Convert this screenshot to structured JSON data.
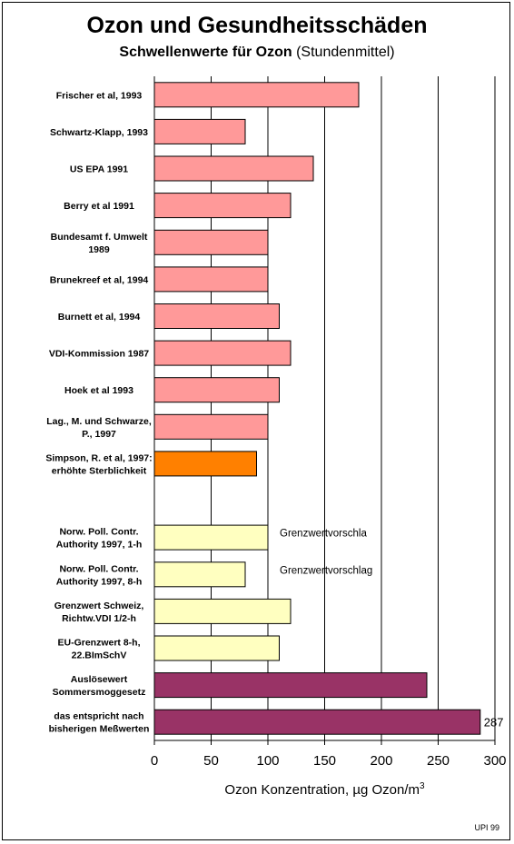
{
  "title": "Ozon und Gesundheitsschäden",
  "subtitle_bold": "Schwellenwerte für Ozon",
  "subtitle_rest": " (Stundenmittel)",
  "credit": "UPI 99",
  "colors": {
    "studies": "#ff9999",
    "mortality": "#ff8000",
    "limits": "#ffffc0",
    "smog": "#993366"
  },
  "chart_data": {
    "type": "bar",
    "orientation": "horizontal",
    "xlabel": "Ozon Konzentration, µg Ozon/m",
    "xlabel_superscript": "3",
    "xlim": [
      0,
      300
    ],
    "xticks": [
      0,
      50,
      100,
      150,
      200,
      250,
      300
    ],
    "grid": "vertical lines",
    "categories": [
      [
        "Frischer et al, 1993"
      ],
      [
        "Schwartz-Klapp, 1993"
      ],
      [
        "US EPA 1991"
      ],
      [
        "Berry et al 1991"
      ],
      [
        "Bundesamt f. Umwelt",
        "1989"
      ],
      [
        "Brunekreef et al, 1994"
      ],
      [
        "Burnett et al, 1994"
      ],
      [
        "VDI-Kommission 1987"
      ],
      [
        "Hoek et al 1993"
      ],
      [
        "Lag., M. und Schwarze,",
        "P., 1997"
      ],
      [
        "Simpson, R. et al, 1997:",
        "erhöhte Sterblichkeit"
      ],
      [
        ""
      ],
      [
        "Norw. Poll. Contr.",
        "Authority 1997, 1-h"
      ],
      [
        "Norw. Poll. Contr.",
        "Authority 1997, 8-h"
      ],
      [
        "Grenzwert Schweiz,",
        "Richtw.VDI 1/2-h"
      ],
      [
        "EU-Grenzwert 8-h,",
        "22.BImSchV"
      ],
      [
        "Auslösewert",
        "Sommersmoggesetz"
      ],
      [
        "das entspricht nach",
        "bisherigen Meßwerten"
      ]
    ],
    "values": [
      180,
      80,
      140,
      120,
      100,
      100,
      110,
      120,
      110,
      100,
      90,
      null,
      100,
      80,
      120,
      110,
      240,
      287
    ],
    "groups": [
      "studies",
      "studies",
      "studies",
      "studies",
      "studies",
      "studies",
      "studies",
      "studies",
      "studies",
      "studies",
      "mortality",
      "none",
      "limits",
      "limits",
      "limits",
      "limits",
      "smog",
      "smog"
    ],
    "annotations": [
      {
        "row": 12,
        "text": "Grenzwertvorschla"
      },
      {
        "row": 13,
        "text": "Grenzwertvorschlag"
      }
    ],
    "data_labels": [
      {
        "row": 17,
        "text": "287"
      }
    ]
  }
}
